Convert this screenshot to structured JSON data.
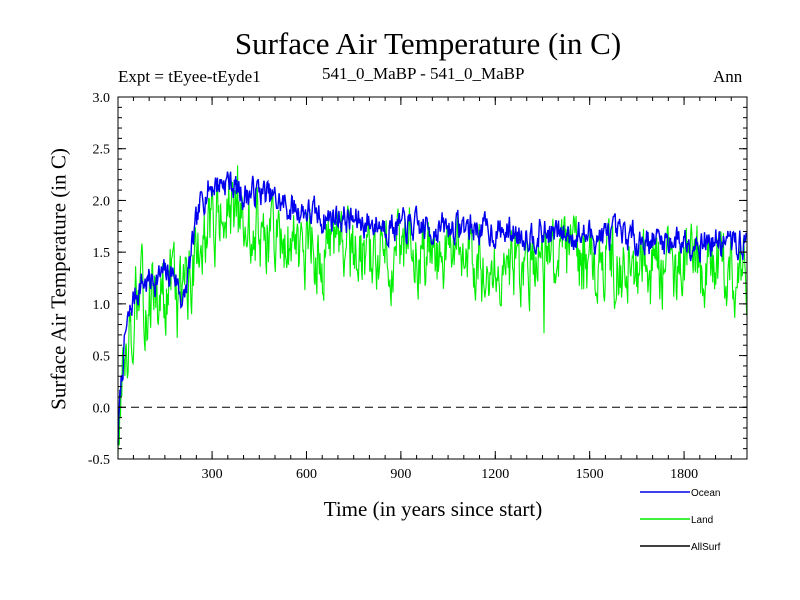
{
  "chart_data": {
    "type": "line",
    "title": "Surface Air Temperature (in C)",
    "subtitle_left": "Expt = tEyee-tEyde1",
    "subtitle_center": "541_0_MaBP - 541_0_MaBP",
    "subtitle_right": "Ann",
    "xlabel": "Time (in years since start)",
    "ylabel": "Surface Air Temperature (in C)",
    "xlim": [
      1,
      2000
    ],
    "ylim": [
      -0.5,
      3.0
    ],
    "xticks": [
      300,
      600,
      900,
      1200,
      1500,
      1800
    ],
    "xtick_labels": [
      "300",
      "600",
      "900",
      "1200",
      "1500",
      "1800"
    ],
    "yticks": [
      -0.5,
      0.0,
      0.5,
      1.0,
      1.5,
      2.0,
      2.5,
      3.0
    ],
    "ytick_labels": [
      "-0.5",
      "0.0",
      "0.5",
      "1.0",
      "1.5",
      "2.0",
      "2.5",
      "3.0"
    ],
    "reference_line": {
      "y": 0.0,
      "style": "dashed"
    },
    "legend_position": "bottom-right",
    "series": [
      {
        "name": "Ocean",
        "color": "#0000ee",
        "noise": 0.12,
        "points": [
          [
            1,
            -0.3
          ],
          [
            10,
            0.2
          ],
          [
            25,
            0.7
          ],
          [
            50,
            1.05
          ],
          [
            75,
            1.2
          ],
          [
            100,
            1.22
          ],
          [
            150,
            1.28
          ],
          [
            180,
            1.3
          ],
          [
            210,
            1.0
          ],
          [
            240,
            1.6
          ],
          [
            270,
            2.05
          ],
          [
            300,
            2.15
          ],
          [
            350,
            2.2
          ],
          [
            400,
            2.05
          ],
          [
            450,
            2.1
          ],
          [
            500,
            2.0
          ],
          [
            550,
            1.92
          ],
          [
            600,
            1.9
          ],
          [
            650,
            1.82
          ],
          [
            700,
            1.85
          ],
          [
            750,
            1.8
          ],
          [
            800,
            1.78
          ],
          [
            900,
            1.75
          ],
          [
            1000,
            1.72
          ],
          [
            1100,
            1.75
          ],
          [
            1200,
            1.7
          ],
          [
            1300,
            1.68
          ],
          [
            1400,
            1.68
          ],
          [
            1500,
            1.66
          ],
          [
            1600,
            1.65
          ],
          [
            1700,
            1.62
          ],
          [
            1800,
            1.62
          ],
          [
            1900,
            1.6
          ],
          [
            2000,
            1.58
          ]
        ]
      },
      {
        "name": "Land",
        "color": "#00ee00",
        "noise": 0.3,
        "points": [
          [
            1,
            -0.3
          ],
          [
            10,
            0.1
          ],
          [
            25,
            0.6
          ],
          [
            50,
            0.9
          ],
          [
            75,
            1.0
          ],
          [
            100,
            1.05
          ],
          [
            150,
            1.15
          ],
          [
            180,
            1.2
          ],
          [
            210,
            1.1
          ],
          [
            240,
            1.4
          ],
          [
            270,
            1.75
          ],
          [
            300,
            1.8
          ],
          [
            350,
            1.85
          ],
          [
            400,
            1.72
          ],
          [
            450,
            1.72
          ],
          [
            500,
            1.65
          ],
          [
            550,
            1.58
          ],
          [
            600,
            1.55
          ],
          [
            700,
            1.5
          ],
          [
            800,
            1.48
          ],
          [
            900,
            1.45
          ],
          [
            1000,
            1.42
          ],
          [
            1100,
            1.42
          ],
          [
            1200,
            1.4
          ],
          [
            1300,
            1.38
          ],
          [
            1400,
            1.38
          ],
          [
            1500,
            1.36
          ],
          [
            1600,
            1.35
          ],
          [
            1700,
            1.35
          ],
          [
            1800,
            1.35
          ],
          [
            1900,
            1.33
          ],
          [
            2000,
            1.32
          ]
        ]
      },
      {
        "name": "AllSurf",
        "color": "#000000",
        "noise": 0,
        "points": []
      }
    ]
  }
}
